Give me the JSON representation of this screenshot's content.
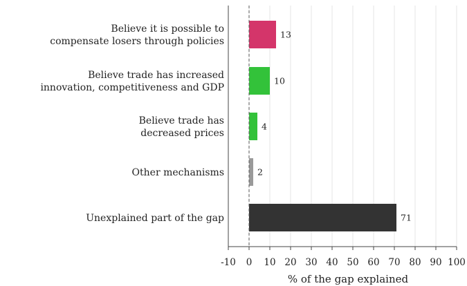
{
  "chart_data": {
    "type": "bar",
    "orientation": "horizontal",
    "categories": [
      [
        "Believe it is possible to",
        "compensate losers through policies"
      ],
      [
        "Believe trade has increased",
        "innovation, competitiveness and GDP"
      ],
      [
        "Believe trade has",
        "decreased prices"
      ],
      [
        "Other mechanisms"
      ],
      [
        "Unexplained part of the gap"
      ]
    ],
    "values": [
      13,
      10,
      4,
      2,
      71
    ],
    "data_labels": [
      "13",
      "10",
      "4",
      "2",
      "71"
    ],
    "colors": [
      "#d4356a",
      "#33c23a",
      "#33c23a",
      "#9a9a9a",
      "#333333"
    ],
    "xlabel": "% of the gap explained",
    "xlim": [
      -10,
      100
    ],
    "xticks": [
      -10,
      0,
      10,
      20,
      30,
      40,
      50,
      60,
      70,
      80,
      90,
      100
    ],
    "xtick_labels": [
      "-10",
      "0",
      "10",
      "20",
      "30",
      "40",
      "50",
      "60",
      "70",
      "80",
      "90",
      "100"
    ],
    "grid": "vertical",
    "reference_line": 0,
    "legend": "none"
  }
}
